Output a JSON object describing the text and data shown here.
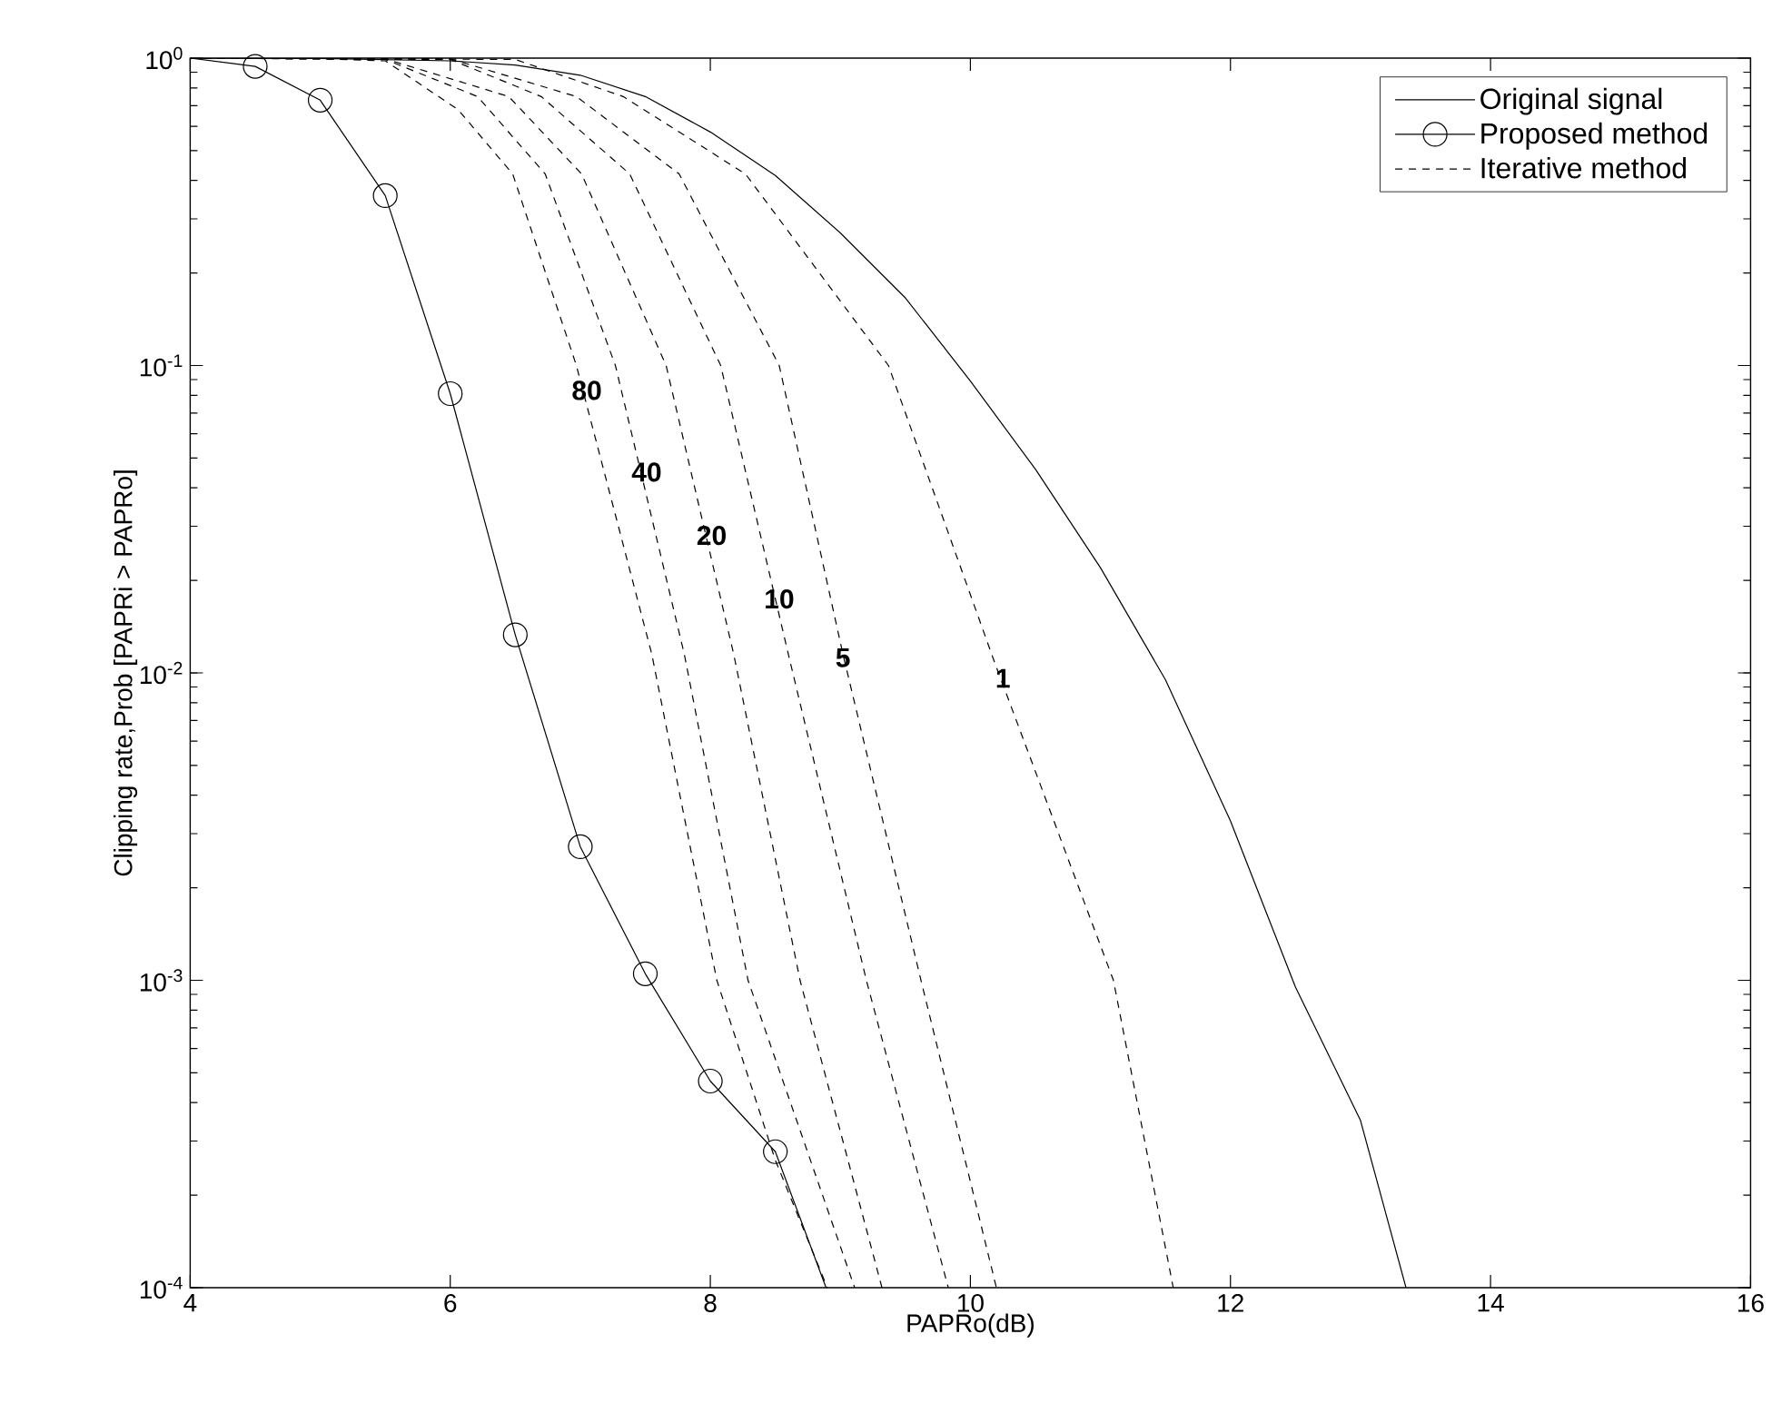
{
  "chart_data": {
    "type": "line",
    "xlabel": "PAPRo(dB)",
    "ylabel": "Clipping rate,Prob [PAPRi > PAPRo]",
    "xlim": [
      4,
      16
    ],
    "ylim": [
      0.0001,
      1
    ],
    "xticks": [
      4,
      6,
      8,
      10,
      12,
      14,
      16
    ],
    "yticks": [
      {
        "value": 0.0001,
        "label": "10$^{-4}$"
      },
      {
        "value": 0.001,
        "label": "10$^{-3}$"
      },
      {
        "value": 0.01,
        "label": "10$^{-2}$"
      },
      {
        "value": 0.1,
        "label": "10$^{-1}$"
      },
      {
        "value": 1,
        "label": "10$^{0}$"
      }
    ],
    "log": "y",
    "legend": "top right",
    "series": [
      {
        "name": "Original signal",
        "color": "#000000",
        "line_style": "solid",
        "marker": "none",
        "x": [
          4,
          5,
          6,
          6.5,
          7,
          7.5,
          8,
          8.5,
          9,
          9.5,
          10,
          10.5,
          11,
          11.5,
          12,
          12.5,
          13,
          13.35
        ],
        "values": [
          1,
          0.998,
          0.98,
          0.95,
          0.88,
          0.75,
          0.575,
          0.415,
          0.27,
          0.166,
          0.089,
          0.046,
          0.022,
          0.0095,
          0.0033,
          0.00095,
          0.00035,
          0.0001
        ]
      },
      {
        "name": "Proposed method",
        "color": "#000000",
        "line_style": "solid",
        "marker": "circle",
        "x": [
          4,
          4.5,
          5,
          5.5,
          6,
          6.5,
          7,
          7.5,
          8,
          8.5,
          8.89
        ],
        "values": [
          1,
          0.94,
          0.73,
          0.357,
          0.081,
          0.0133,
          0.00272,
          0.00105,
          0.00047,
          0.000277,
          0.0001
        ]
      },
      {
        "name": "Iterative method",
        "color": "#000000",
        "line_style": "dashed",
        "marker": "none",
        "x": [
          4,
          5,
          5.5,
          6.06,
          6.48,
          6.97,
          7.55,
          8.05,
          8.5,
          8.9
        ],
        "values": [
          1,
          0.995,
          0.98,
          0.68,
          0.42,
          0.1,
          0.0115,
          0.001,
          0.00026,
          0.0001
        ]
      },
      {
        "color": "#000000",
        "line_style": "dashed",
        "marker": "none",
        "x": [
          4,
          5.5,
          6.21,
          6.73,
          7.27,
          7.8,
          8.29,
          9.11
        ],
        "values": [
          1,
          0.99,
          0.75,
          0.42,
          0.1,
          0.0115,
          0.001,
          0.0001
        ]
      },
      {
        "color": "#000000",
        "line_style": "dashed",
        "marker": "none",
        "x": [
          4,
          5.5,
          6.45,
          7.01,
          7.66,
          8.18,
          8.69,
          9.32
        ],
        "values": [
          1,
          0.995,
          0.75,
          0.42,
          0.1,
          0.0115,
          0.001,
          0.0001
        ]
      },
      {
        "color": "#000000",
        "line_style": "dashed",
        "marker": "none",
        "x": [
          4,
          6,
          6.7,
          7.38,
          8.08,
          8.6,
          9.2,
          9.83
        ],
        "values": [
          1,
          0.99,
          0.75,
          0.42,
          0.1,
          0.0115,
          0.001,
          0.0001
        ]
      },
      {
        "color": "#000000",
        "line_style": "dashed",
        "marker": "none",
        "x": [
          4,
          6,
          6.97,
          7.76,
          8.53,
          9.02,
          9.62,
          10.2
        ],
        "values": [
          1,
          0.995,
          0.75,
          0.42,
          0.1,
          0.0115,
          0.001,
          0.0001
        ]
      },
      {
        "color": "#000000",
        "line_style": "dashed",
        "marker": "none",
        "x": [
          4,
          6.5,
          7.33,
          8.27,
          9.37,
          10.18,
          11.1,
          11.56
        ],
        "values": [
          1,
          0.99,
          0.75,
          0.42,
          0.1,
          0.011,
          0.001,
          0.0001
        ]
      }
    ],
    "annotations": [
      {
        "text": "**80**",
        "x": 7.05,
        "y": 0.083
      },
      {
        "text": "**40**",
        "x": 7.51,
        "y": 0.045
      },
      {
        "text": "**20**",
        "x": 8.01,
        "y": 0.028
      },
      {
        "text": "**10**",
        "x": 8.53,
        "y": 0.0174
      },
      {
        "text": "**5**",
        "x": 9.02,
        "y": 0.0112
      },
      {
        "text": "**1**",
        "x": 10.25,
        "y": 0.0096
      }
    ]
  }
}
